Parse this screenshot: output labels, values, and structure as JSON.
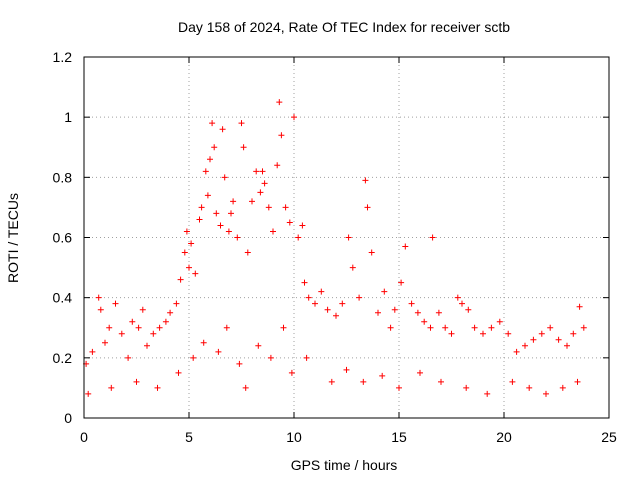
{
  "chart_data": {
    "type": "scatter",
    "title": "Day 158 of 2024, Rate Of TEC Index for receiver sctb",
    "xlabel": "GPS time / hours",
    "ylabel": "ROTI / TECUs",
    "xlim": [
      0,
      25
    ],
    "ylim": [
      0,
      1.2
    ],
    "xticks": [
      0,
      5,
      10,
      15,
      20,
      25
    ],
    "yticks": [
      0,
      0.2,
      0.4,
      0.6,
      0.8,
      1,
      1.2
    ],
    "xtick_labels": [
      "0",
      "5",
      "10",
      "15",
      "20",
      "25"
    ],
    "ytick_labels": [
      "0",
      "0.2",
      "0.4",
      "0.6",
      "0.8",
      "1",
      "1.2"
    ],
    "grid": true,
    "marker": "+",
    "color": "#ff0000",
    "series": [
      {
        "name": "ROTI",
        "x": [
          0.1,
          0.4,
          0.7,
          0.8,
          1.0,
          1.2,
          1.5,
          1.8,
          2.1,
          2.3,
          2.6,
          2.8,
          3.0,
          3.3,
          3.6,
          3.9,
          4.1,
          4.4,
          4.6,
          4.8,
          4.9,
          5.0,
          5.1,
          5.3,
          5.5,
          5.6,
          5.8,
          5.9,
          6.0,
          6.1,
          6.2,
          6.3,
          6.5,
          6.6,
          6.7,
          6.9,
          7.0,
          7.1,
          7.3,
          7.5,
          7.6,
          7.8,
          8.0,
          8.2,
          8.4,
          8.5,
          8.6,
          8.8,
          9.0,
          9.2,
          9.3,
          9.4,
          9.6,
          9.8,
          10.0,
          10.2,
          10.4,
          10.5,
          10.7,
          11.0,
          11.3,
          11.6,
          12.0,
          12.3,
          12.6,
          12.8,
          13.1,
          13.4,
          13.5,
          13.7,
          14.0,
          14.3,
          14.6,
          14.8,
          15.1,
          15.3,
          15.6,
          15.9,
          16.2,
          16.5,
          16.6,
          16.9,
          17.2,
          17.5,
          17.8,
          18.0,
          18.3,
          18.6,
          19.0,
          19.4,
          19.8,
          20.2,
          20.6,
          21.0,
          21.4,
          21.8,
          22.2,
          22.6,
          23.0,
          23.3,
          23.6,
          23.8,
          0.2,
          1.3,
          2.5,
          3.5,
          4.5,
          5.2,
          5.7,
          6.4,
          6.8,
          7.4,
          7.7,
          8.3,
          8.9,
          9.5,
          9.9,
          10.6,
          11.8,
          12.5,
          13.3,
          14.2,
          15.0,
          16.0,
          17.0,
          18.2,
          19.2,
          20.4,
          21.2,
          22.0,
          22.8,
          23.5
        ],
        "y": [
          0.18,
          0.22,
          0.4,
          0.36,
          0.25,
          0.3,
          0.38,
          0.28,
          0.2,
          0.32,
          0.3,
          0.36,
          0.24,
          0.28,
          0.3,
          0.32,
          0.35,
          0.38,
          0.46,
          0.55,
          0.62,
          0.5,
          0.58,
          0.48,
          0.66,
          0.7,
          0.82,
          0.74,
          0.86,
          0.98,
          0.9,
          0.68,
          0.64,
          0.96,
          0.8,
          0.62,
          0.68,
          0.72,
          0.6,
          0.98,
          0.9,
          0.55,
          0.72,
          0.82,
          0.75,
          0.82,
          0.78,
          0.7,
          0.62,
          0.84,
          1.05,
          0.94,
          0.7,
          0.65,
          1.0,
          0.6,
          0.64,
          0.45,
          0.4,
          0.38,
          0.42,
          0.36,
          0.34,
          0.38,
          0.6,
          0.5,
          0.4,
          0.79,
          0.7,
          0.55,
          0.35,
          0.42,
          0.3,
          0.36,
          0.45,
          0.57,
          0.38,
          0.35,
          0.32,
          0.3,
          0.6,
          0.35,
          0.3,
          0.28,
          0.4,
          0.38,
          0.36,
          0.3,
          0.28,
          0.3,
          0.32,
          0.28,
          0.22,
          0.24,
          0.26,
          0.28,
          0.3,
          0.26,
          0.24,
          0.28,
          0.37,
          0.3,
          0.08,
          0.1,
          0.12,
          0.1,
          0.15,
          0.2,
          0.25,
          0.22,
          0.3,
          0.18,
          0.1,
          0.24,
          0.2,
          0.3,
          0.15,
          0.2,
          0.12,
          0.16,
          0.12,
          0.14,
          0.1,
          0.15,
          0.12,
          0.1,
          0.08,
          0.12,
          0.1,
          0.08,
          0.1,
          0.12
        ]
      }
    ]
  }
}
